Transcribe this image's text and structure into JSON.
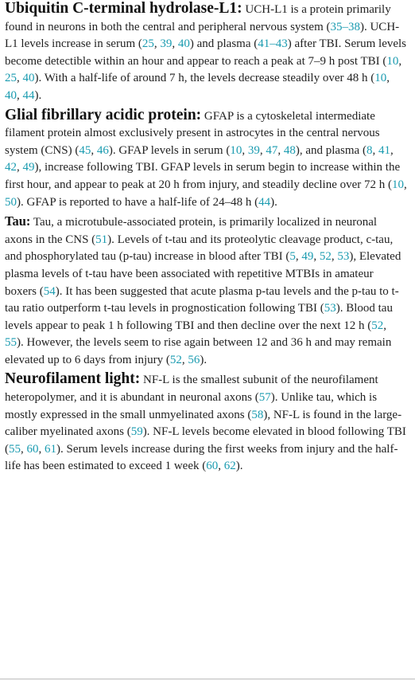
{
  "paragraphs": [
    {
      "heading": "Ubiquitin C-terminal hydrolase-L1:",
      "parts": [
        "UCH-L1 is a protein primarily found in neurons in both the central and peripheral nervous system (",
        {
          "ref": "35–38"
        },
        "). UCH-L1 levels increase in serum (",
        {
          "ref": "25"
        },
        ", ",
        {
          "ref": "39"
        },
        ", ",
        {
          "ref": "40"
        },
        ") and plasma (",
        {
          "ref": "41–43"
        },
        ") after TBI. Serum levels become detectible within an hour and appear to reach a peak at 7–9 h post TBI (",
        {
          "ref": "10"
        },
        ", ",
        {
          "ref": "25"
        },
        ", ",
        {
          "ref": "40"
        },
        "). With a half-life of around 7 h, the levels decrease steadily over 48 h (",
        {
          "ref": "10"
        },
        ", ",
        {
          "ref": "40"
        },
        ", ",
        {
          "ref": "44"
        },
        ")."
      ]
    },
    {
      "heading": "Glial fibrillary acidic protein:",
      "parts": [
        "GFAP is a cytoskeletal intermediate filament protein almost exclusively present in astrocytes in the central nervous system (CNS) (",
        {
          "ref": "45"
        },
        ", ",
        {
          "ref": "46"
        },
        "). GFAP levels in serum (",
        {
          "ref": "10"
        },
        ", ",
        {
          "ref": "39"
        },
        ", ",
        {
          "ref": "47"
        },
        ", ",
        {
          "ref": "48"
        },
        "), and plasma (",
        {
          "ref": "8"
        },
        ", ",
        {
          "ref": "41"
        },
        ", ",
        {
          "ref": "42"
        },
        ", ",
        {
          "ref": "49"
        },
        "), increase following TBI. GFAP levels in serum begin to increase within the first hour, and appear to peak at 20 h from injury, and steadily decline over 72 h (",
        {
          "ref": "10"
        },
        ", ",
        {
          "ref": "50"
        },
        "). GFAP is reported to have a half-life of 24–48 h (",
        {
          "ref": "44"
        },
        ")."
      ]
    },
    {
      "heading": "Tau:",
      "parts": [
        "Tau, a microtubule-associated protein, is primarily localized in neuronal axons in the CNS (",
        {
          "ref": "51"
        },
        "). Levels of t-tau and its proteolytic cleavage product, c-tau, and phosphorylated tau (p-tau) increase in blood after TBI (",
        {
          "ref": "5"
        },
        ", ",
        {
          "ref": "49"
        },
        ", ",
        {
          "ref": "52"
        },
        ", ",
        {
          "ref": "53"
        },
        "), Elevated plasma levels of t-tau have been associated with repetitive MTBIs in amateur boxers (",
        {
          "ref": "54"
        },
        "). It has been suggested that acute plasma p-tau levels and the p-tau to t-tau ratio outperform t-tau levels in prognostication following TBI (",
        {
          "ref": "53"
        },
        "). Blood tau levels appear to peak 1 h following TBI and then decline over the next 12 h (",
        {
          "ref": "52"
        },
        ", ",
        {
          "ref": "55"
        },
        "). However, the levels seem to rise again between 12 and 36 h and may remain elevated up to 6 days from injury (",
        {
          "ref": "52"
        },
        ", ",
        {
          "ref": "56"
        },
        ")."
      ]
    },
    {
      "heading": "Neurofilament light:",
      "parts": [
        "NF-L is the smallest subunit of the neurofilament heteropolymer, and it is abundant in neuronal axons (",
        {
          "ref": "57"
        },
        "). Unlike tau, which is mostly expressed in the small unmyelinated axons (",
        {
          "ref": "58"
        },
        "), NF-L is found in the large-caliber myelinated axons (",
        {
          "ref": "59"
        },
        "). NF-L levels become elevated in blood following TBI (",
        {
          "ref": "55"
        },
        ", ",
        {
          "ref": "60"
        },
        ", ",
        {
          "ref": "61"
        },
        "). Serum levels increase during the first weeks from injury and the half-life has been estimated to exceed 1 week (",
        {
          "ref": "60"
        },
        ", ",
        {
          "ref": "62"
        },
        ")."
      ]
    }
  ]
}
